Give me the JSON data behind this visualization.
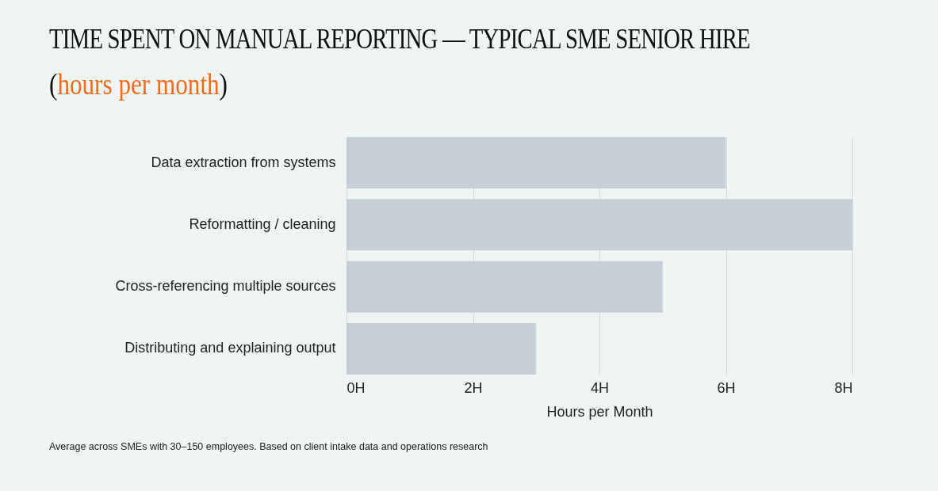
{
  "chart_data": {
    "type": "bar",
    "orientation": "horizontal",
    "title": "TIME SPENT ON MANUAL REPORTING — TYPICAL SME SENIOR HIRE",
    "subtitle": "(hours per month)",
    "xlabel": "Hours per Month",
    "categories": [
      "Data extraction from systems",
      "Reformatting / cleaning",
      "Cross-referencing multiple sources",
      "Distributing and explaining output"
    ],
    "values": [
      6,
      8,
      5,
      3
    ],
    "color": "#c8ced5",
    "xlim": [
      0,
      8
    ],
    "xticks": [
      {
        "value": 0,
        "label": "0H"
      },
      {
        "value": 2,
        "label": "2H"
      },
      {
        "value": 4,
        "label": "4H"
      },
      {
        "value": 6,
        "label": "6H"
      },
      {
        "value": 8,
        "label": "8H"
      }
    ],
    "grid": "x",
    "annotations": [
      "Average across SMEs with 30–150 employees. Based on client intake data and operations research"
    ]
  }
}
